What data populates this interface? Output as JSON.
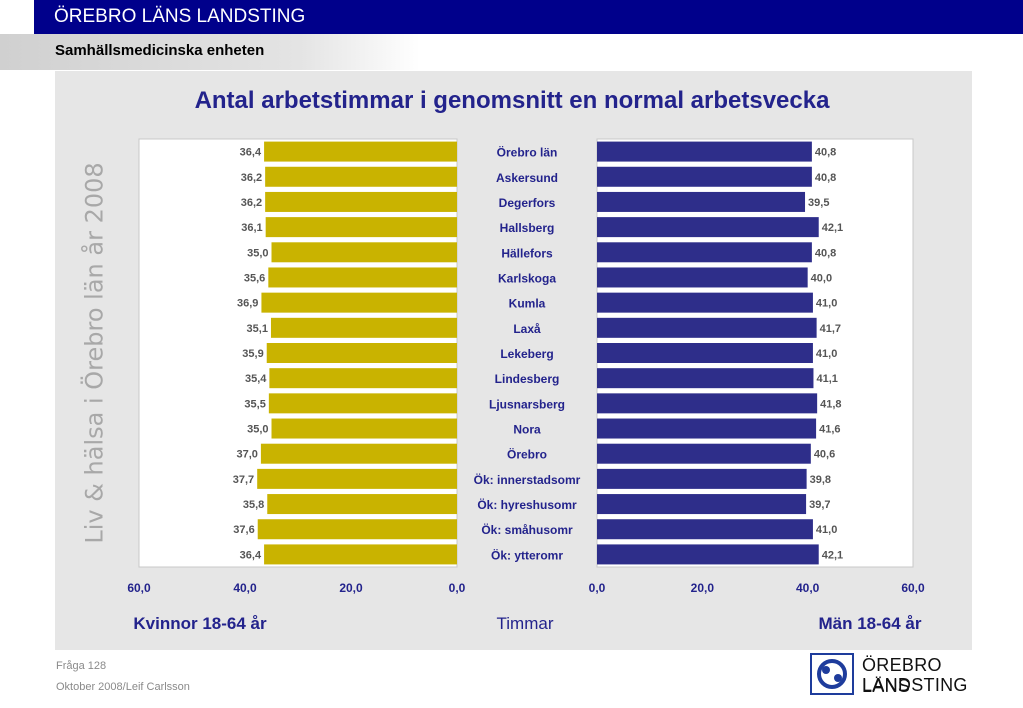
{
  "header": {
    "org": "ÖREBRO LÄNS LANDSTING",
    "unit": "Samhällsmedicinska enheten"
  },
  "side_text": "Liv & hälsa i Örebro län år 2008",
  "footer": {
    "question": "Fråga 128",
    "date_author": "Oktober 2008/Leif Carlsson"
  },
  "logo": {
    "line1": "ÖREBRO LÄNS",
    "line2": "LANDSTING"
  },
  "colors": {
    "women": "#c9b300",
    "men": "#2e2e8a",
    "title": "#23238c",
    "panel": "#e6e6e6",
    "header": "#00008b"
  },
  "chart_data": {
    "type": "bar",
    "orientation": "horizontal",
    "title": "Antal arbetstimmar i genomsnitt en normal arbetsvecka",
    "categories": [
      "Örebro län",
      "Askersund",
      "Degerfors",
      "Hallsberg",
      "Hällefors",
      "Karlskoga",
      "Kumla",
      "Laxå",
      "Lekeberg",
      "Lindesberg",
      "Ljusnarsberg",
      "Nora",
      "Örebro",
      "Ök: innerstadsomr",
      "Ök: hyreshusomr",
      "Ök: småhusomr",
      "Ök: ytteromr"
    ],
    "series": [
      {
        "name": "Kvinnor 18-64 år",
        "values": [
          36.4,
          36.2,
          36.2,
          36.1,
          35.0,
          35.6,
          36.9,
          35.1,
          35.9,
          35.4,
          35.5,
          35.0,
          37.0,
          37.7,
          35.8,
          37.6,
          36.4
        ],
        "labels": [
          "36,4",
          "36,2",
          "36,2",
          "36,1",
          "35,0",
          "35,6",
          "36,9",
          "35,1",
          "35,9",
          "35,4",
          "35,5",
          "35,0",
          "37,0",
          "37,7",
          "35,8",
          "37,6",
          "36,4"
        ]
      },
      {
        "name": "Män 18-64 år",
        "values": [
          40.8,
          40.8,
          39.5,
          42.1,
          40.8,
          40.0,
          41.0,
          41.7,
          41.0,
          41.1,
          41.8,
          41.6,
          40.6,
          39.8,
          39.7,
          41.0,
          42.1
        ],
        "labels": [
          "40,8",
          "40,8",
          "39,5",
          "42,1",
          "40,8",
          "40,0",
          "41,0",
          "41,7",
          "41,0",
          "41,1",
          "41,8",
          "41,6",
          "40,6",
          "39,8",
          "39,7",
          "41,0",
          "42,1"
        ]
      }
    ],
    "xlim": [
      0,
      60
    ],
    "left_ticks": [
      "60,0",
      "40,0",
      "20,0",
      "0,0"
    ],
    "right_ticks": [
      "0,0",
      "20,0",
      "40,0",
      "60,0"
    ],
    "xlabel": "Timmar",
    "left_label": "Kvinnor 18-64 år",
    "right_label": "Män 18-64 år",
    "grid": false
  }
}
